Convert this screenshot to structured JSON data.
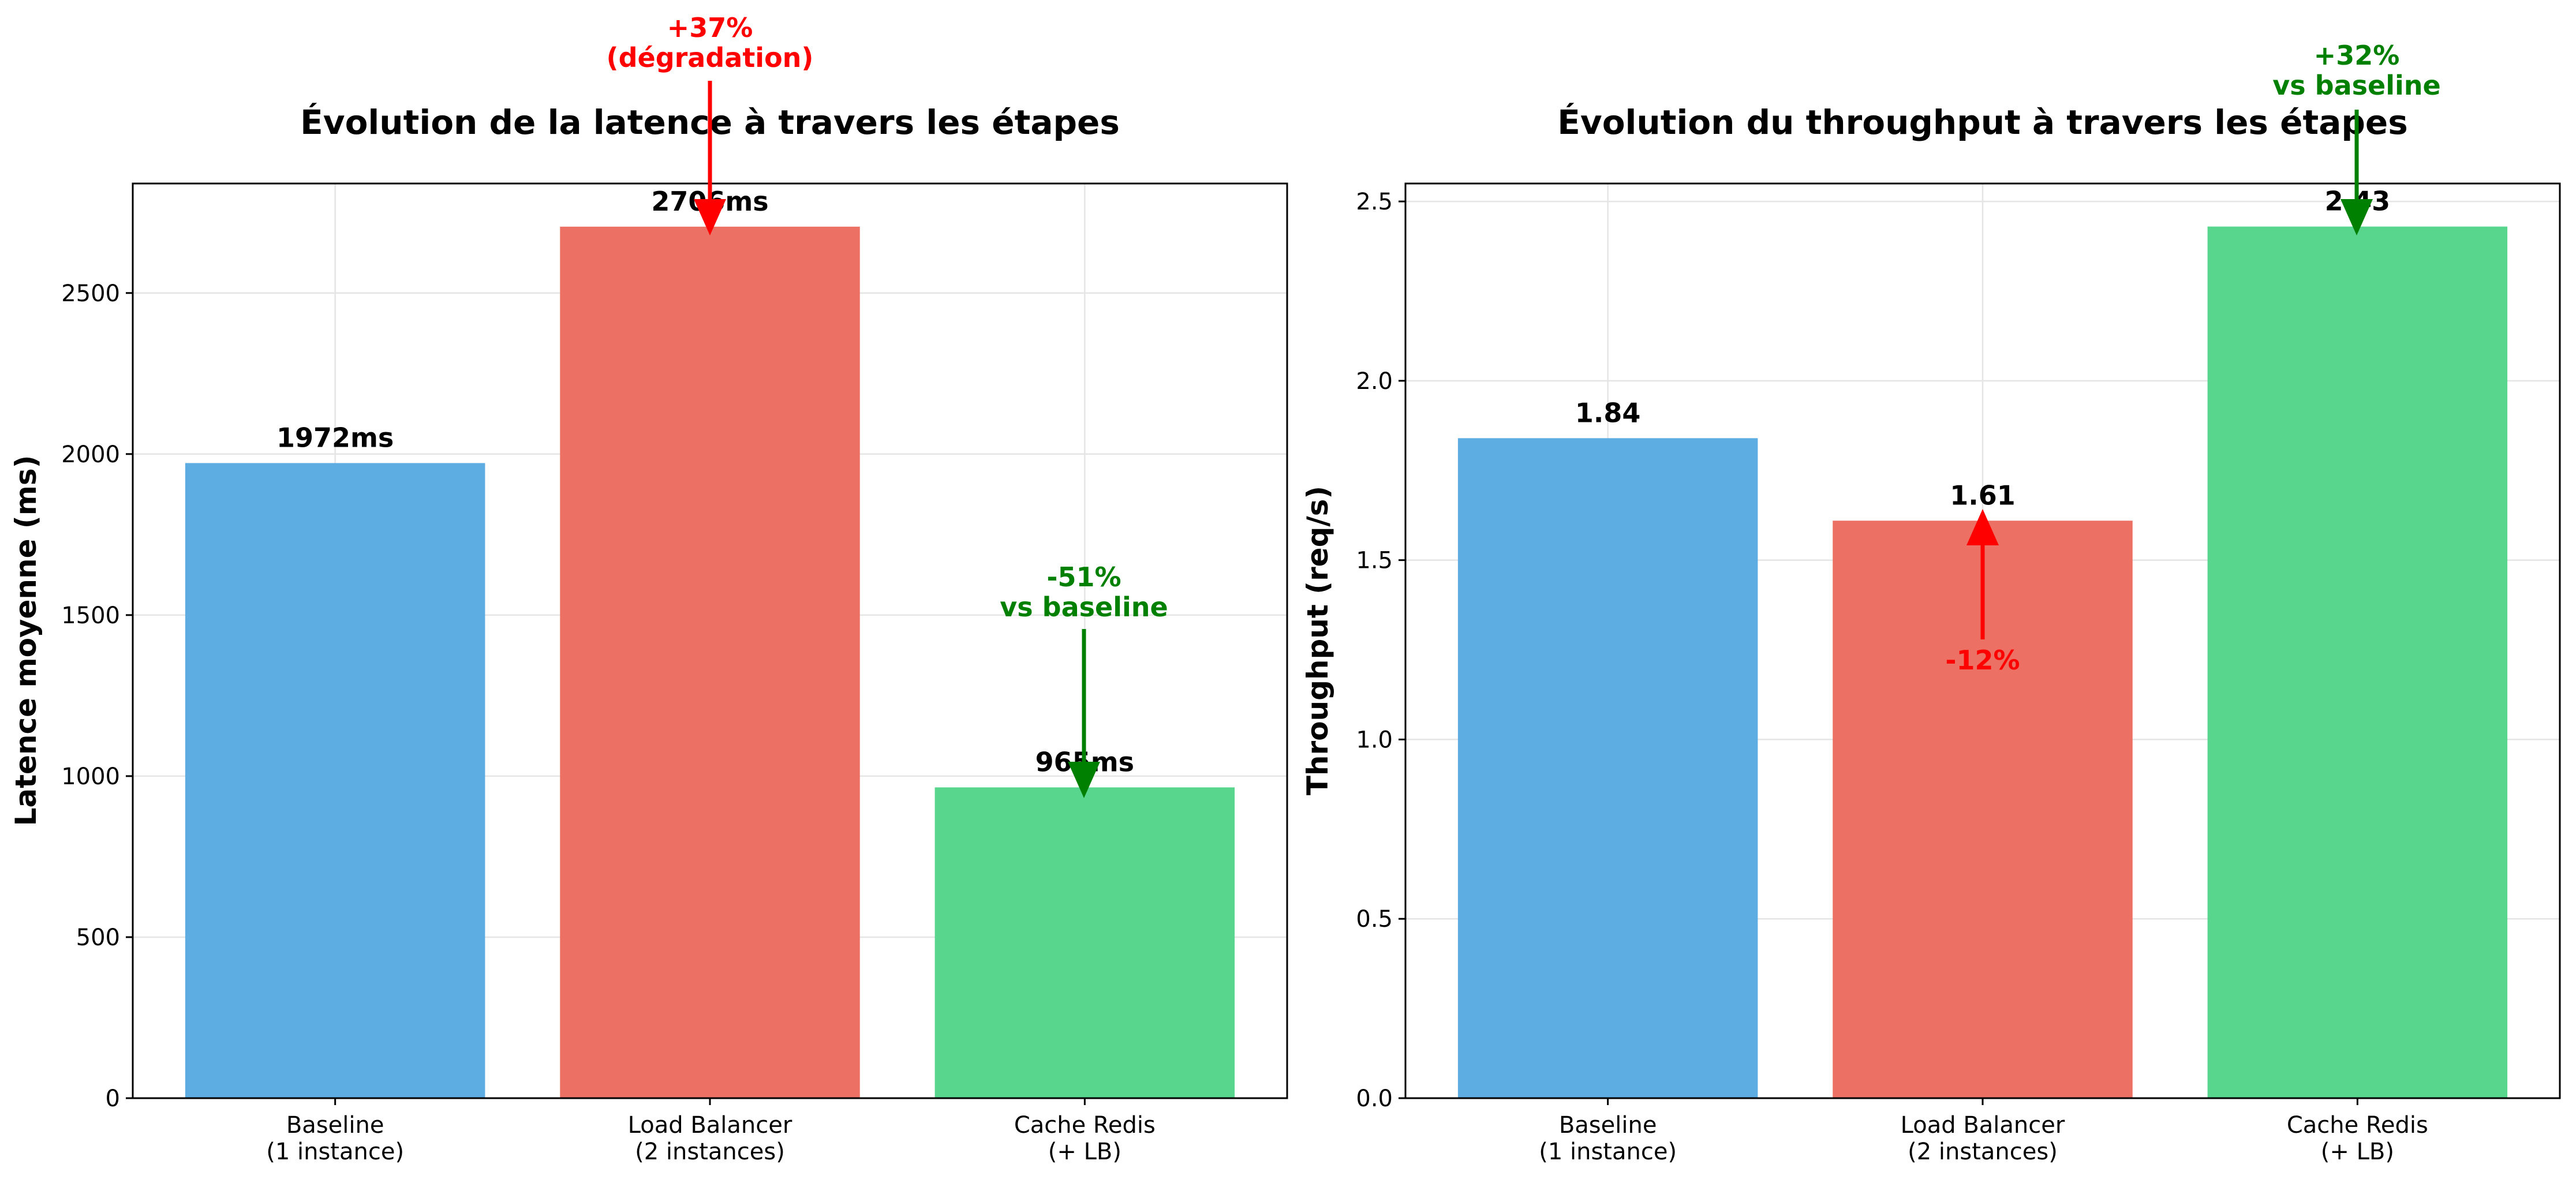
{
  "colors": {
    "baseline": "#5DADE2",
    "load_balancer": "#EC7063",
    "cache": "#58D68D",
    "increase_bad": "#FF0000",
    "improvement": "#008000",
    "text": "#000000",
    "grid": "#E5E5E5"
  },
  "chart_data": [
    {
      "type": "bar",
      "title": "Évolution de la latence à travers les étapes",
      "xlabel": "",
      "ylabel": "Latence moyenne (ms)",
      "categories": [
        "Baseline\n(1 instance)",
        "Load Balancer\n(2 instances)",
        "Cache Redis\n(+ LB)"
      ],
      "values": [
        1972,
        2706,
        965
      ],
      "value_labels": [
        "1972ms",
        "2706ms",
        "965ms"
      ],
      "ylim": [
        0,
        2840
      ],
      "yticks": [
        0,
        500,
        1000,
        1500,
        2000,
        2500
      ],
      "grid": true,
      "annotations": [
        {
          "text": "+37%\n(dégradation)",
          "target_category": 1,
          "color": "increase_bad"
        },
        {
          "text": "-51%\nvs baseline",
          "target_category": 2,
          "color": "improvement"
        }
      ]
    },
    {
      "type": "bar",
      "title": "Évolution du throughput à travers les étapes",
      "xlabel": "",
      "ylabel": "Throughput (req/s)",
      "categories": [
        "Baseline\n(1 instance)",
        "Load Balancer\n(2 instances)",
        "Cache Redis\n(+ LB)"
      ],
      "values": [
        1.84,
        1.61,
        2.43
      ],
      "value_labels": [
        "1.84",
        "1.61",
        "2.43"
      ],
      "ylim": [
        0,
        2.55
      ],
      "yticks": [
        "0.0",
        "0.5",
        "1.0",
        "1.5",
        "2.0",
        "2.5"
      ],
      "grid": true,
      "annotations": [
        {
          "text": "-12%",
          "target_category": 1,
          "color": "increase_bad"
        },
        {
          "text": "+32%\nvs baseline",
          "target_category": 2,
          "color": "improvement"
        }
      ]
    }
  ]
}
